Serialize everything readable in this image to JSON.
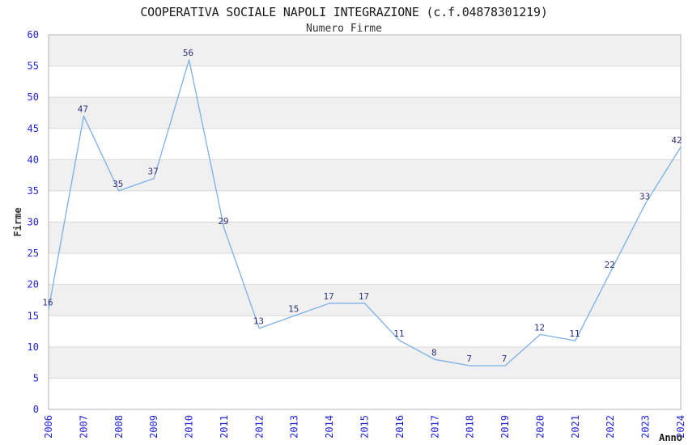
{
  "chart_data": {
    "type": "line",
    "title": "COOPERATIVA SOCIALE NAPOLI INTEGRAZIONE (c.f.04878301219)",
    "subtitle": "Numero Firme",
    "xlabel": "Anno",
    "ylabel": "Firme",
    "categories": [
      "2006",
      "2007",
      "2008",
      "2009",
      "2010",
      "2011",
      "2012",
      "2013",
      "2014",
      "2015",
      "2016",
      "2017",
      "2018",
      "2019",
      "2020",
      "2021",
      "2022",
      "2023",
      "2024"
    ],
    "series": [
      {
        "name": "Numero Firme",
        "values": [
          16,
          47,
          35,
          37,
          56,
          29,
          13,
          15,
          17,
          17,
          11,
          8,
          7,
          7,
          12,
          11,
          22,
          33,
          42
        ]
      }
    ],
    "ylim": [
      0,
      60
    ],
    "ytick_step": 5,
    "yticks": [
      0,
      5,
      10,
      15,
      20,
      25,
      30,
      35,
      40,
      45,
      50,
      55,
      60
    ],
    "legend": "none",
    "grid": "horizontal-bands",
    "colors": {
      "line": "#7bb0e7",
      "tick_label": "#2323dd",
      "data_label": "#32327e",
      "band_gray": "#f0f0f0",
      "band_white": "#ffffff",
      "gridline": "#d9d9d9",
      "plot_border": "#b3b3b3",
      "title": "#1a1a1a",
      "axis_label": "#333333"
    }
  }
}
